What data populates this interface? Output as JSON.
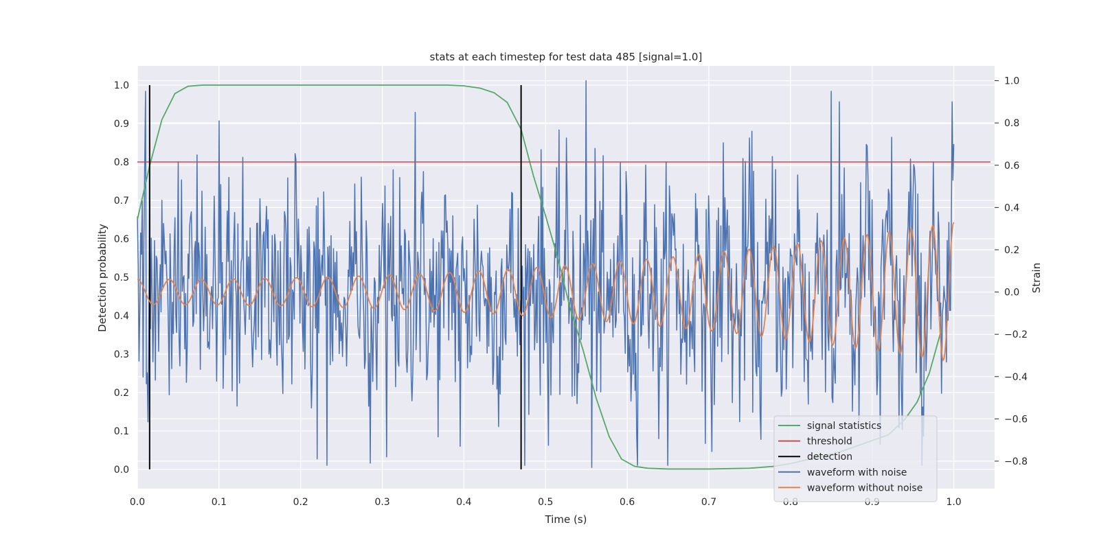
{
  "chart_data": {
    "type": "line",
    "title": "stats at each timestep for test data 485 [signal=1.0]",
    "xlabel": "Time (s)",
    "ylabel": "Detection probability",
    "y2label": "Strain",
    "xlim": [
      0.0,
      1.05
    ],
    "ylim": [
      -0.05,
      1.05
    ],
    "y2lim": [
      -0.93,
      1.07
    ],
    "xticks": [
      "0.0",
      "0.1",
      "0.2",
      "0.3",
      "0.4",
      "0.5",
      "0.6",
      "0.7",
      "0.8",
      "0.9",
      "1.0"
    ],
    "yticks": [
      "0.0",
      "0.1",
      "0.2",
      "0.3",
      "0.4",
      "0.5",
      "0.6",
      "0.7",
      "0.8",
      "0.9",
      "1.0"
    ],
    "y2ticks": [
      "−0.8",
      "−0.6",
      "−0.4",
      "−0.2",
      "0.0",
      "0.2",
      "0.4",
      "0.6",
      "0.8",
      "1.0"
    ],
    "grid": true,
    "legend_position": "lower-right",
    "colors": {
      "plot_background": "#eaeaf2",
      "grid": "#ffffff",
      "signal_statistics": "#55a868",
      "threshold": "#c44e52",
      "detection": "#000000",
      "waveform_with_noise": "#4c72b0",
      "waveform_without_noise": "#dd8452"
    },
    "series": [
      {
        "name": "signal statistics",
        "axis": "left",
        "x": [
          0.0,
          0.015,
          0.03,
          0.046,
          0.062,
          0.08,
          0.1,
          0.2,
          0.3,
          0.38,
          0.4,
          0.42,
          0.437,
          0.453,
          0.47,
          0.485,
          0.5,
          0.515,
          0.53,
          0.546,
          0.562,
          0.578,
          0.593,
          0.609,
          0.625,
          0.65,
          0.7,
          0.75,
          0.78,
          0.8,
          0.82,
          0.84,
          0.86,
          0.88,
          0.9,
          0.92,
          0.94,
          0.955,
          0.97,
          0.985
        ],
        "values": [
          0.65,
          0.79,
          0.91,
          0.978,
          0.997,
          1.0,
          1.0,
          1.0,
          1.0,
          1.0,
          0.998,
          0.992,
          0.98,
          0.955,
          0.885,
          0.765,
          0.66,
          0.55,
          0.42,
          0.31,
          0.185,
          0.085,
          0.027,
          0.008,
          0.003,
          0.001,
          0.001,
          0.003,
          0.008,
          0.015,
          0.025,
          0.035,
          0.045,
          0.06,
          0.075,
          0.09,
          0.13,
          0.175,
          0.25,
          0.365
        ]
      },
      {
        "name": "threshold",
        "axis": "left",
        "x": [
          0.0,
          1.045
        ],
        "values": [
          0.8,
          0.8
        ]
      },
      {
        "name": "detection",
        "axis": "left",
        "type": "vlines",
        "x": [
          0.015,
          0.47
        ],
        "ymin": 0.0,
        "ymax": 1.0
      },
      {
        "name": "waveform with noise",
        "axis": "right",
        "generated": "noisy",
        "amplitude": 0.27,
        "x_range": [
          0.0,
          1.0
        ],
        "points": 1000,
        "extremes": [
          {
            "x": 0.01,
            "value": 0.95
          },
          {
            "x": 0.1,
            "value": 0.81
          },
          {
            "x": 0.22,
            "value": -0.79
          },
          {
            "x": 0.305,
            "value": -0.78
          },
          {
            "x": 0.34,
            "value": 0.85
          },
          {
            "x": 0.395,
            "value": -0.73
          },
          {
            "x": 0.55,
            "value": 1.0
          },
          {
            "x": 0.557,
            "value": -0.83
          },
          {
            "x": 0.85,
            "value": 0.95
          },
          {
            "x": 0.91,
            "value": -0.72
          }
        ]
      },
      {
        "name": "waveform without noise",
        "axis": "right",
        "generated": "chirp",
        "x_range": [
          0.0,
          1.0
        ],
        "points": 1000,
        "amplitude_start": 0.06,
        "amplitude_end": 0.33,
        "cycles": 30
      }
    ],
    "legend": [
      "signal statistics",
      "threshold",
      "detection",
      "waveform with noise",
      "waveform without noise"
    ]
  }
}
